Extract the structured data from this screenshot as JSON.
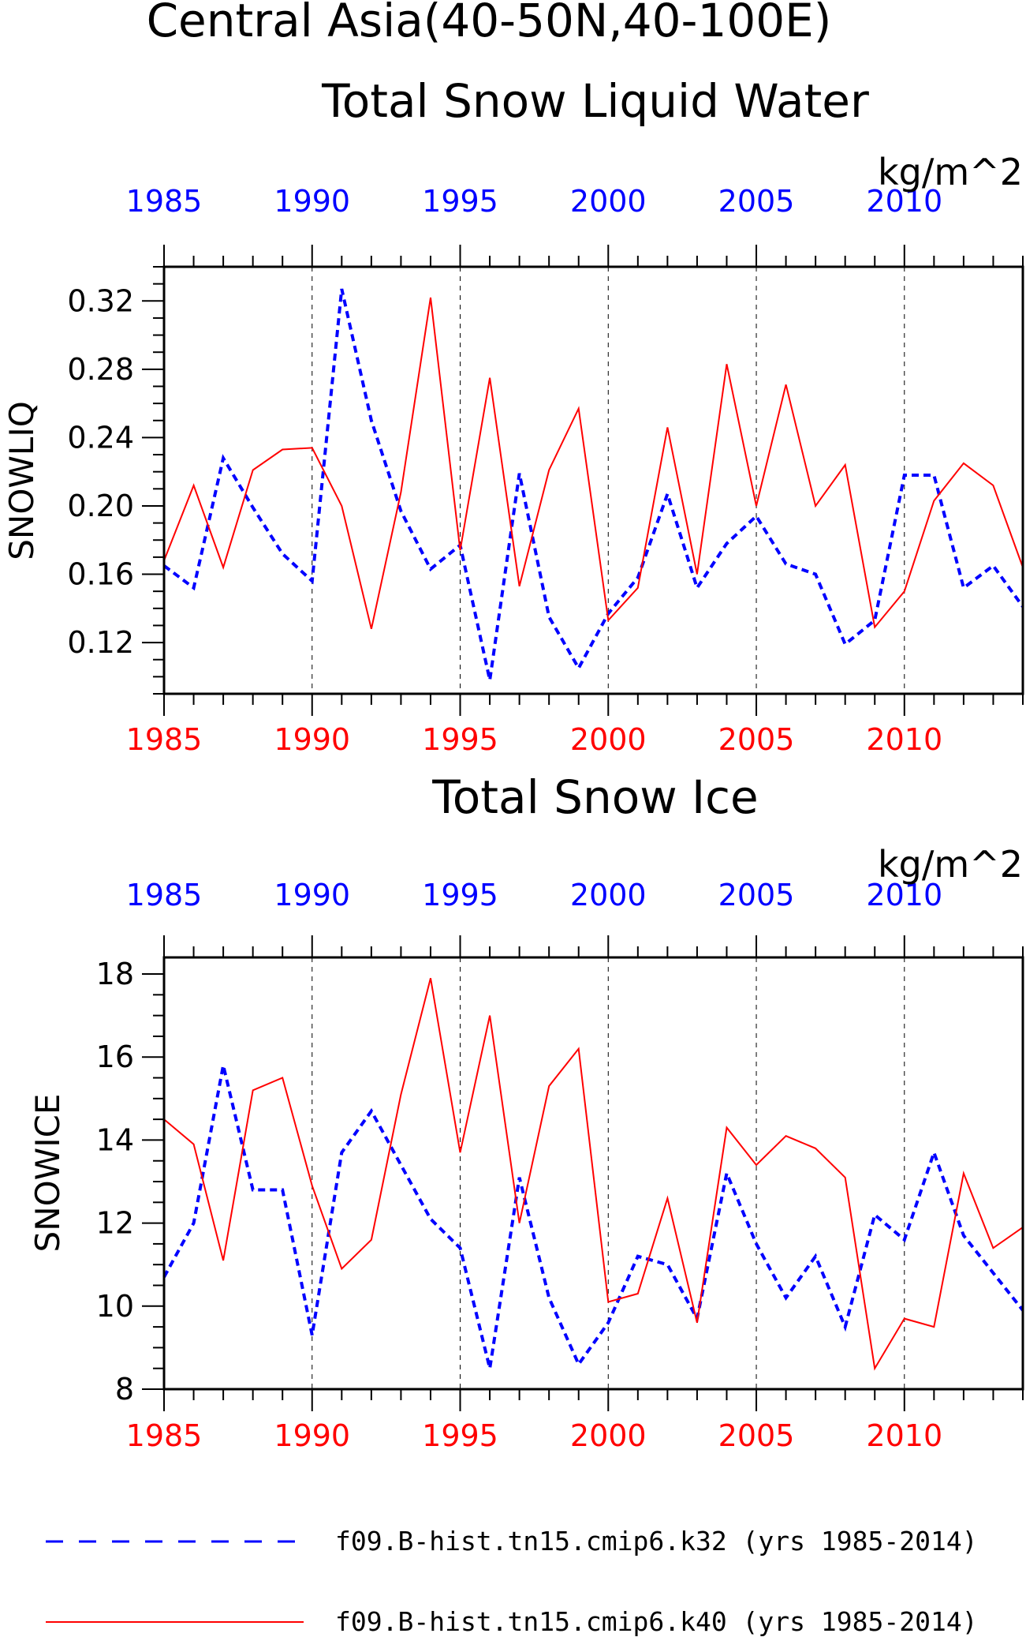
{
  "figure": {
    "title_line1": "Central Asia(40-50N,40-100E)",
    "title_line2": "Total Snow Liquid Water"
  },
  "colors": {
    "series_k32": "#0000ff",
    "series_k40": "#ff0000",
    "axis": "#000000"
  },
  "chart_data": [
    {
      "type": "line",
      "title": "Total Snow Liquid Water",
      "units": "kg/m^2",
      "ylabel": "SNOWLIQ",
      "xlabel": "",
      "xlim": [
        1985,
        2014
      ],
      "ylim": [
        0.09,
        0.34
      ],
      "xticks": [
        "1985",
        "1990",
        "1995",
        "2000",
        "2005",
        "2010"
      ],
      "yticks": [
        "0.12",
        "0.16",
        "0.20",
        "0.24",
        "0.28",
        "0.32"
      ],
      "grid": "dashed vertical lines at major x ticks",
      "x": [
        1985,
        1986,
        1987,
        1988,
        1989,
        1990,
        1991,
        1992,
        1993,
        1994,
        1995,
        1996,
        1997,
        1998,
        1999,
        2000,
        2001,
        2002,
        2003,
        2004,
        2005,
        2006,
        2007,
        2008,
        2009,
        2010,
        2011,
        2012,
        2013,
        2014
      ],
      "series": [
        {
          "name": "f09.B-hist.tn15.cmip6.k32 (yrs 1985-2014)",
          "color": "#0000ff",
          "style": "dashed",
          "values": [
            0.165,
            0.152,
            0.228,
            0.199,
            0.172,
            0.156,
            0.327,
            0.25,
            0.197,
            0.163,
            0.177,
            0.098,
            0.219,
            0.135,
            0.105,
            0.137,
            0.158,
            0.207,
            0.152,
            0.178,
            0.194,
            0.166,
            0.16,
            0.119,
            0.133,
            0.218,
            0.218,
            0.152,
            0.165,
            0.141
          ]
        },
        {
          "name": "f09.B-hist.tn15.cmip6.k40 (yrs 1985-2014)",
          "color": "#ff0000",
          "style": "solid",
          "values": [
            0.168,
            0.212,
            0.164,
            0.221,
            0.233,
            0.234,
            0.2,
            0.128,
            0.208,
            0.322,
            0.174,
            0.275,
            0.153,
            0.221,
            0.257,
            0.133,
            0.152,
            0.246,
            0.16,
            0.283,
            0.2,
            0.271,
            0.2,
            0.224,
            0.129,
            0.15,
            0.203,
            0.225,
            0.212,
            0.164
          ]
        }
      ]
    },
    {
      "type": "line",
      "title": "Total Snow Ice",
      "units": "kg/m^2",
      "ylabel": "SNOWICE",
      "xlabel": "",
      "xlim": [
        1985,
        2014
      ],
      "ylim": [
        8,
        18.4
      ],
      "xticks": [
        "1985",
        "1990",
        "1995",
        "2000",
        "2005",
        "2010"
      ],
      "yticks": [
        "8",
        "10",
        "12",
        "14",
        "16",
        "18"
      ],
      "grid": "dashed vertical lines at major x ticks",
      "x": [
        1985,
        1986,
        1987,
        1988,
        1989,
        1990,
        1991,
        1992,
        1993,
        1994,
        1995,
        1996,
        1997,
        1998,
        1999,
        2000,
        2001,
        2002,
        2003,
        2004,
        2005,
        2006,
        2007,
        2008,
        2009,
        2010,
        2011,
        2012,
        2013,
        2014
      ],
      "series": [
        {
          "name": "f09.B-hist.tn15.cmip6.k32 (yrs 1985-2014)",
          "color": "#0000ff",
          "style": "dashed",
          "values": [
            10.7,
            12.0,
            15.8,
            12.8,
            12.8,
            9.3,
            13.7,
            14.7,
            13.4,
            12.1,
            11.4,
            8.5,
            13.1,
            10.2,
            8.6,
            9.6,
            11.2,
            11.0,
            9.7,
            13.2,
            11.5,
            10.2,
            11.2,
            9.5,
            12.2,
            11.6,
            13.7,
            11.7,
            10.8,
            9.9
          ]
        },
        {
          "name": "f09.B-hist.tn15.cmip6.k40 (yrs 1985-2014)",
          "color": "#ff0000",
          "style": "solid",
          "values": [
            14.5,
            13.9,
            11.1,
            15.2,
            15.5,
            12.9,
            10.9,
            11.6,
            15.1,
            17.9,
            13.7,
            17.0,
            12.0,
            15.3,
            16.2,
            10.1,
            10.3,
            12.6,
            9.6,
            14.3,
            13.4,
            14.1,
            13.8,
            13.1,
            8.5,
            9.7,
            9.5,
            13.2,
            11.4,
            11.9
          ]
        }
      ]
    }
  ],
  "legend": {
    "items": [
      {
        "label": "f09.B-hist.tn15.cmip6.k32 (yrs 1985-2014)",
        "color": "#0000ff",
        "style": "dashed"
      },
      {
        "label": "f09.B-hist.tn15.cmip6.k40 (yrs 1985-2014)",
        "color": "#ff0000",
        "style": "solid"
      }
    ]
  }
}
